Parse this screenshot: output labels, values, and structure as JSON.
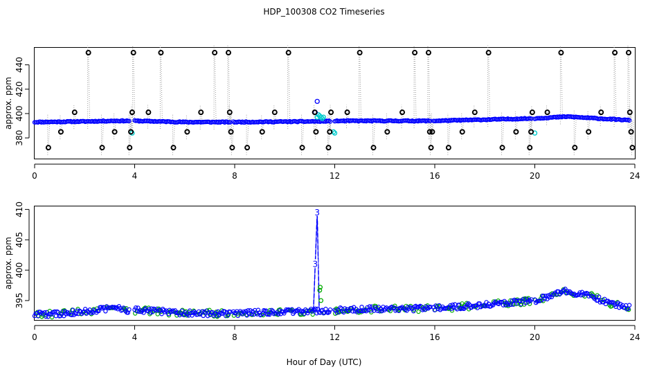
{
  "figure": {
    "title": "HDP_100308  CO2 Timeseries",
    "xlabel": "Hour of Day (UTC)"
  },
  "colors": {
    "main_series": "#0000ff",
    "outlier_points": "#000000",
    "flagged_points": "#00cccc",
    "secondary_points": "#00aa00",
    "drop_lines": "#999999"
  },
  "chart_data": [
    {
      "type": "scatter",
      "panel": "top",
      "xlabel": "",
      "ylabel": "approx. ppm",
      "xlim": [
        0,
        24
      ],
      "ylim": [
        363,
        454
      ],
      "x_ticks": [
        0,
        4,
        8,
        12,
        16,
        20,
        24
      ],
      "x_tick_labels": [
        "0",
        "4",
        "8",
        "12",
        "16",
        "20",
        "24"
      ],
      "y_ticks": [
        380,
        400,
        420,
        440
      ],
      "y_tick_labels": [
        "380",
        "400",
        "420",
        "440"
      ],
      "grid": false,
      "baseline_series": {
        "marker": "open-circle",
        "color": "#0000ff",
        "segments": [
          [
            0.0,
            3.8
          ],
          [
            4.0,
            7.85
          ],
          [
            7.95,
            11.85
          ],
          [
            12.0,
            15.85
          ],
          [
            15.95,
            19.9
          ],
          [
            20.0,
            23.8
          ]
        ],
        "profile": [
          {
            "x": 0.0,
            "y": 393
          },
          {
            "x": 2.0,
            "y": 393.5
          },
          {
            "x": 3.2,
            "y": 394
          },
          {
            "x": 4.0,
            "y": 394
          },
          {
            "x": 6.0,
            "y": 393
          },
          {
            "x": 8.0,
            "y": 393
          },
          {
            "x": 11.0,
            "y": 393.5
          },
          {
            "x": 12.5,
            "y": 394
          },
          {
            "x": 16.0,
            "y": 394
          },
          {
            "x": 18.0,
            "y": 395
          },
          {
            "x": 20.0,
            "y": 396
          },
          {
            "x": 21.3,
            "y": 397.5
          },
          {
            "x": 22.5,
            "y": 396
          },
          {
            "x": 23.8,
            "y": 394.5
          }
        ]
      },
      "outlier_points": {
        "marker": "open-circle",
        "color": "#000000",
        "x": [
          0.55,
          1.05,
          1.6,
          2.15,
          2.7,
          3.2,
          3.8,
          3.85,
          3.9,
          3.95,
          4.55,
          5.05,
          5.55,
          6.1,
          6.65,
          7.2,
          7.75,
          7.8,
          7.85,
          7.9,
          8.5,
          9.1,
          9.6,
          10.15,
          10.7,
          11.2,
          11.25,
          11.75,
          11.8,
          11.85,
          12.5,
          13.0,
          13.55,
          14.1,
          14.7,
          15.2,
          15.75,
          15.8,
          15.85,
          15.9,
          16.55,
          17.1,
          17.6,
          18.15,
          18.7,
          19.25,
          19.8,
          19.85,
          19.9,
          20.5,
          21.05,
          21.6,
          22.15,
          22.65,
          23.2,
          23.75,
          23.8,
          23.85,
          23.9
        ],
        "y": [
          372,
          385,
          401,
          450,
          372,
          385,
          372,
          385,
          401,
          450,
          401,
          450,
          372,
          385,
          401,
          450,
          450,
          401,
          385,
          372,
          372,
          385,
          401,
          450,
          372,
          401,
          385,
          372,
          385,
          401,
          401,
          450,
          372,
          385,
          401,
          450,
          450,
          385,
          372,
          385,
          372,
          385,
          401,
          450,
          372,
          385,
          372,
          385,
          401,
          401,
          450,
          372,
          385,
          401,
          450,
          450,
          401,
          385,
          372
        ]
      },
      "flagged_points": {
        "marker": "open-circle",
        "color": "#00cccc",
        "x": [
          3.9,
          11.3,
          11.35,
          11.4,
          11.45,
          11.5,
          11.55,
          11.95,
          12.0,
          20.0
        ],
        "y": [
          384,
          397,
          399,
          398,
          397,
          396,
          397,
          385,
          384,
          384
        ]
      },
      "spike_points": {
        "marker": "open-circle",
        "color": "#0000ff",
        "x": [
          11.22,
          11.3
        ],
        "y": [
          401,
          410
        ]
      }
    },
    {
      "type": "scatter",
      "panel": "bottom",
      "xlabel": "Hour of Day (UTC)",
      "ylabel": "approx. ppm",
      "xlim": [
        0,
        24
      ],
      "ylim": [
        391.8,
        410.5
      ],
      "x_ticks": [
        0,
        4,
        8,
        12,
        16,
        20,
        24
      ],
      "x_tick_labels": [
        "0",
        "4",
        "8",
        "12",
        "16",
        "20",
        "24"
      ],
      "y_ticks": [
        395,
        400,
        405,
        410
      ],
      "y_tick_labels": [
        "395",
        "400",
        "405",
        "410"
      ],
      "grid": false,
      "series": [
        {
          "marker": "open-circle",
          "color": "#0000ff",
          "segments": [
            [
              0.0,
              3.8
            ],
            [
              4.0,
              7.85
            ],
            [
              7.95,
              11.85
            ],
            [
              12.0,
              15.85
            ],
            [
              15.95,
              19.9
            ],
            [
              20.0,
              23.8
            ]
          ],
          "profile": [
            {
              "x": 0.0,
              "y": 392.7
            },
            {
              "x": 1.0,
              "y": 392.8
            },
            {
              "x": 2.0,
              "y": 393.2
            },
            {
              "x": 3.2,
              "y": 393.8
            },
            {
              "x": 3.8,
              "y": 393.4
            },
            {
              "x": 4.0,
              "y": 393.4
            },
            {
              "x": 6.0,
              "y": 393.0
            },
            {
              "x": 7.85,
              "y": 392.8
            },
            {
              "x": 8.0,
              "y": 392.9
            },
            {
              "x": 10.5,
              "y": 393.2
            },
            {
              "x": 11.8,
              "y": 393.3
            },
            {
              "x": 12.0,
              "y": 393.4
            },
            {
              "x": 14.0,
              "y": 393.7
            },
            {
              "x": 16.0,
              "y": 393.7
            },
            {
              "x": 18.0,
              "y": 394.3
            },
            {
              "x": 19.9,
              "y": 395.0
            },
            {
              "x": 20.0,
              "y": 395.0
            },
            {
              "x": 21.2,
              "y": 396.6
            },
            {
              "x": 22.2,
              "y": 395.8
            },
            {
              "x": 23.0,
              "y": 394.5
            },
            {
              "x": 23.8,
              "y": 393.9
            }
          ]
        }
      ],
      "spike": {
        "x": [
          11.15,
          11.22,
          11.3,
          11.38
        ],
        "y": [
          393.4,
          401,
          409.5,
          393.4
        ],
        "labels": [
          {
            "x": 11.22,
            "y": 401,
            "text": "3"
          },
          {
            "x": 11.3,
            "y": 409.5,
            "text": "3"
          }
        ],
        "secondary_x": [
          11.4,
          11.42,
          11.45
        ],
        "secondary_y": [
          396.7,
          397.2,
          395.0
        ]
      }
    }
  ]
}
